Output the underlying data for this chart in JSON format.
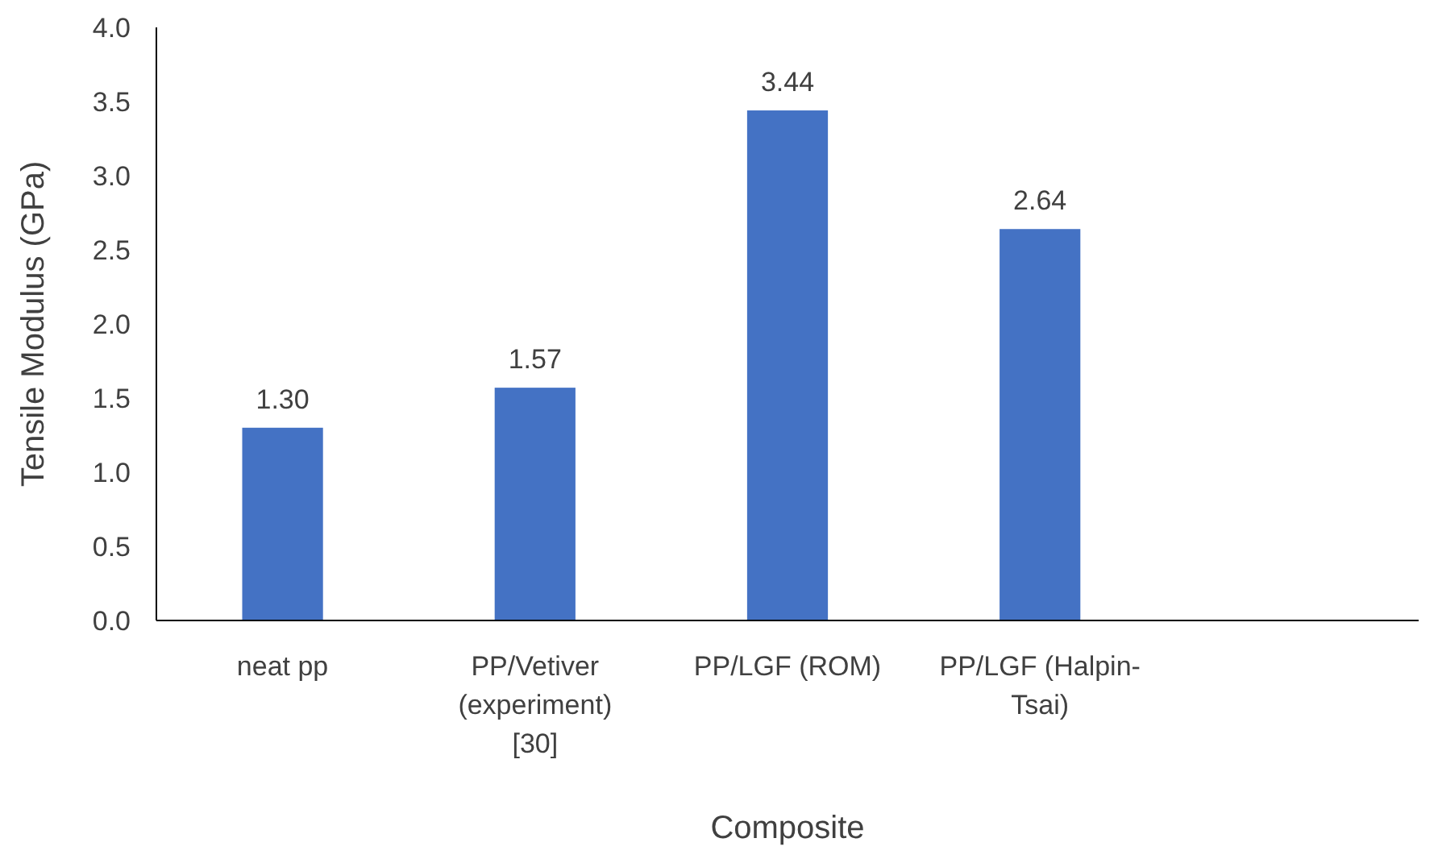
{
  "chart_data": {
    "type": "bar",
    "xlabel": "Composite",
    "ylabel": "Tensile Modulus (GPa)",
    "categories": [
      "neat pp",
      "PP/Vetiver (experiment) [30]",
      "PP/LGF (ROM)",
      "PP/LGF (Halpin-Tsai)",
      null
    ],
    "values": [
      1.3,
      1.57,
      3.44,
      2.64,
      null
    ],
    "value_labels": [
      "1.30",
      "1.57",
      "3.44",
      "2.64",
      null
    ],
    "color": "#4472c4",
    "ylim": [
      0,
      4
    ],
    "yticks": [
      {
        "value": 0,
        "label": "0.0"
      },
      {
        "value": 0.5,
        "label": "0.5"
      },
      {
        "value": 1,
        "label": "1.0"
      },
      {
        "value": 1.5,
        "label": "1.5"
      },
      {
        "value": 2,
        "label": "2.0"
      },
      {
        "value": 2.5,
        "label": "2.5"
      },
      {
        "value": 3,
        "label": "3.0"
      },
      {
        "value": 3.5,
        "label": "3.5"
      },
      {
        "value": 4,
        "label": "4.0"
      }
    ],
    "data_labels": false
  }
}
